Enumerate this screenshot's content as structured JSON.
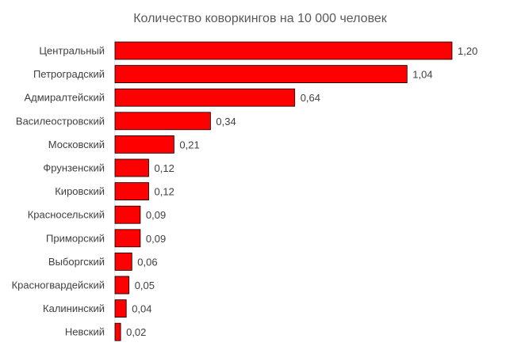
{
  "chart_data": {
    "type": "bar",
    "orientation": "horizontal",
    "title": "Количество коворкингов на 10 000 человек",
    "xlabel": "",
    "ylabel": "",
    "xlim": [
      0,
      1.2
    ],
    "grid": false,
    "legend": "none",
    "bar_color": "#FF0000",
    "bar_outline_color": "#000000",
    "categories": [
      "Центральный",
      "Петроградский",
      "Адмиралтейский",
      "Василеостровский",
      "Московский",
      "Фрунзенский",
      "Кировский",
      "Красносельский",
      "Приморский",
      "Выборгский",
      "Красногвардейский",
      "Калининский",
      "Невский"
    ],
    "values": [
      1.2,
      1.04,
      0.64,
      0.34,
      0.21,
      0.12,
      0.12,
      0.09,
      0.09,
      0.06,
      0.05,
      0.04,
      0.02
    ],
    "value_labels": [
      "1,20",
      "1,04",
      "0,64",
      "0,34",
      "0,21",
      "0,12",
      "0,12",
      "0,09",
      "0,09",
      "0,06",
      "0,05",
      "0,04",
      "0,02"
    ]
  }
}
